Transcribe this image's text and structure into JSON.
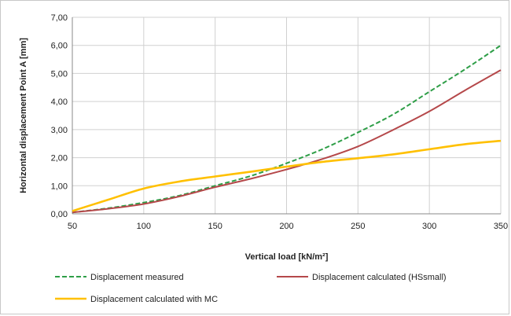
{
  "chart_data": {
    "type": "line",
    "xlabel": "Vertical load [kN/m²]",
    "ylabel": "Horizontal displacement Point A [mm]",
    "xlim": [
      50,
      350
    ],
    "ylim": [
      0,
      7
    ],
    "x_ticks": [
      "50",
      "100",
      "150",
      "200",
      "250",
      "300",
      "350"
    ],
    "y_ticks": [
      "0,00",
      "1,00",
      "2,00",
      "3,00",
      "4,00",
      "5,00",
      "6,00",
      "7,00"
    ],
    "grid": true,
    "legend_position": "bottom",
    "series": [
      {
        "name": "Displacement measured",
        "style": "dashed",
        "color": "#2e9e47",
        "points": [
          [
            50,
            0.05
          ],
          [
            75,
            0.2
          ],
          [
            100,
            0.4
          ],
          [
            125,
            0.65
          ],
          [
            150,
            1.0
          ],
          [
            175,
            1.35
          ],
          [
            200,
            1.8
          ],
          [
            225,
            2.3
          ],
          [
            250,
            2.9
          ],
          [
            275,
            3.55
          ],
          [
            300,
            4.35
          ],
          [
            325,
            5.15
          ],
          [
            350,
            6.0
          ]
        ]
      },
      {
        "name": "Displacement calculated (HSsmall)",
        "style": "solid",
        "color": "#b5484a",
        "points": [
          [
            50,
            0.05
          ],
          [
            75,
            0.18
          ],
          [
            100,
            0.35
          ],
          [
            125,
            0.62
          ],
          [
            150,
            0.95
          ],
          [
            175,
            1.25
          ],
          [
            200,
            1.58
          ],
          [
            225,
            1.95
          ],
          [
            250,
            2.4
          ],
          [
            275,
            3.0
          ],
          [
            300,
            3.65
          ],
          [
            325,
            4.4
          ],
          [
            350,
            5.12
          ]
        ]
      },
      {
        "name": "Displacement calculated with MC",
        "style": "solid",
        "color": "#ffc000",
        "points": [
          [
            50,
            0.1
          ],
          [
            75,
            0.5
          ],
          [
            100,
            0.9
          ],
          [
            125,
            1.15
          ],
          [
            150,
            1.33
          ],
          [
            175,
            1.5
          ],
          [
            200,
            1.68
          ],
          [
            225,
            1.85
          ],
          [
            250,
            1.98
          ],
          [
            275,
            2.12
          ],
          [
            300,
            2.3
          ],
          [
            325,
            2.48
          ],
          [
            350,
            2.6
          ]
        ]
      }
    ]
  }
}
